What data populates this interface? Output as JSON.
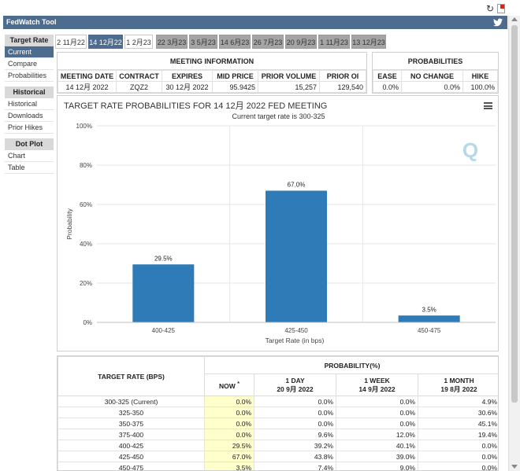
{
  "app": {
    "title": "FedWatch Tool"
  },
  "icons": {
    "refresh": "refresh-icon",
    "pdf": "pdf-icon",
    "twitter": "twitter-icon",
    "menu": "hamburger-menu-icon"
  },
  "colors": {
    "brand": "#4e6c8e",
    "bar": "#2e7bb7",
    "now_highlight": "#ffffcc"
  },
  "sidebar": {
    "sections": [
      {
        "heading": "Target Rate",
        "items": [
          {
            "label": "Current",
            "active": true
          },
          {
            "label": "Compare"
          },
          {
            "label": "Probabilities"
          }
        ]
      },
      {
        "heading": "Historical",
        "items": [
          {
            "label": "Historical"
          },
          {
            "label": "Downloads"
          },
          {
            "label": "Prior Hikes"
          }
        ]
      },
      {
        "heading": "Dot Plot",
        "items": [
          {
            "label": "Chart"
          },
          {
            "label": "Table"
          }
        ]
      }
    ]
  },
  "tabs": [
    "2 11月22",
    "14 12月22",
    "1 2月23",
    "22 3月23",
    "3 5月23",
    "14 6月23",
    "26 7月23",
    "20 9月23",
    "1 11月23",
    "13 12月23"
  ],
  "meeting_info": {
    "title": "MEETING INFORMATION",
    "headers": [
      "MEETING DATE",
      "CONTRACT",
      "EXPIRES",
      "MID PRICE",
      "PRIOR VOLUME",
      "PRIOR OI"
    ],
    "row": [
      "14 12月 2022",
      "ZQZ2",
      "30 12月 2022",
      "95.9425",
      "15,257",
      "129,540"
    ]
  },
  "probabilities": {
    "title": "PROBABILITIES",
    "headers": [
      "EASE",
      "NO CHANGE",
      "HIKE"
    ],
    "row": [
      "0.0%",
      "0.0%",
      "100.0%"
    ]
  },
  "chart_data": {
    "type": "bar",
    "title": "TARGET RATE PROBABILITIES FOR 14 12月 2022 FED MEETING",
    "subtitle": "Current target rate is 300-325",
    "categories": [
      "400-425",
      "425-450",
      "450-475"
    ],
    "values": [
      29.5,
      67.0,
      3.5
    ],
    "data_labels": [
      "29.5%",
      "67.0%",
      "3.5%"
    ],
    "xlabel": "Target Rate (in bps)",
    "ylabel": "Probability",
    "ylim": [
      0,
      100
    ],
    "yticks": [
      "0%",
      "20%",
      "40%",
      "60%",
      "80%",
      "100%"
    ],
    "grid": true,
    "watermark": "Q"
  },
  "prob_table": {
    "col1_header": "TARGET RATE (BPS)",
    "group_header": "PROBABILITY(%)",
    "now_header": "NOW",
    "now_mark": "*",
    "cols": [
      {
        "line1": "1 DAY",
        "line2": "20 9月 2022"
      },
      {
        "line1": "1 WEEK",
        "line2": "14 9月 2022"
      },
      {
        "line1": "1 MONTH",
        "line2": "19 8月 2022"
      }
    ],
    "rows": [
      [
        "300-325 (Current)",
        "0.0%",
        "0.0%",
        "0.0%",
        "4.9%"
      ],
      [
        "325-350",
        "0.0%",
        "0.0%",
        "0.0%",
        "30.6%"
      ],
      [
        "350-375",
        "0.0%",
        "0.0%",
        "0.0%",
        "45.1%"
      ],
      [
        "375-400",
        "0.0%",
        "9.6%",
        "12.0%",
        "19.4%"
      ],
      [
        "400-425",
        "29.5%",
        "39.2%",
        "40.1%",
        "0.0%"
      ],
      [
        "425-450",
        "67.0%",
        "43.8%",
        "39.0%",
        "0.0%"
      ],
      [
        "450-475",
        "3.5%",
        "7.4%",
        "9.0%",
        "0.0%"
      ]
    ]
  }
}
